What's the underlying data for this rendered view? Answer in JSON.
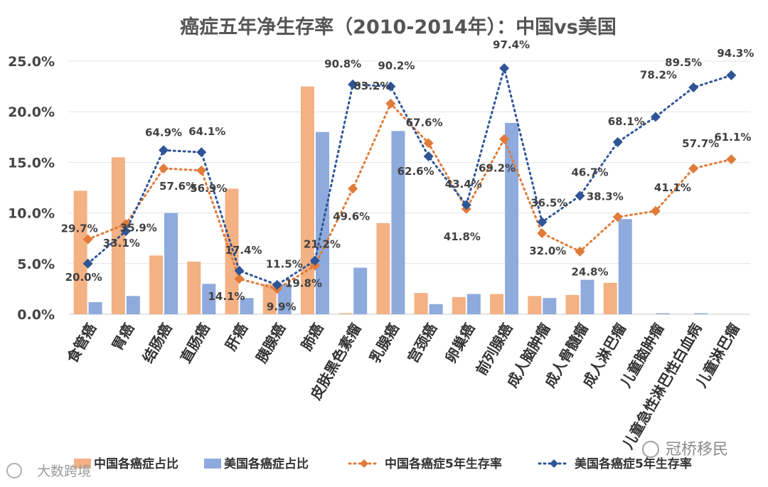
{
  "chart_data": {
    "type": "bar",
    "title": "癌症五年净生存率（2010-2014年）：中国vs美国",
    "categories": [
      "食管癌",
      "胃癌",
      "结肠癌",
      "直肠癌",
      "肝癌",
      "胰腺癌",
      "肺癌",
      "皮肤黑色素瘤",
      "乳腺癌",
      "宫颈癌",
      "卵巢癌",
      "前列腺癌",
      "成人脑肿瘤",
      "成人骨髓瘤",
      "成人淋巴瘤",
      "儿童脑肿瘤",
      "儿童急性淋巴性白血病",
      "儿童淋巴瘤"
    ],
    "ylim": [
      0,
      25
    ],
    "yticks": [
      "0.0%",
      "5.0%",
      "10.0%",
      "15.0%",
      "20.0%",
      "25.0%"
    ],
    "series": [
      {
        "name": "中国各癌症占比",
        "kind": "bar",
        "color": "#F4B183",
        "values": [
          12.2,
          15.5,
          5.8,
          5.2,
          12.4,
          3.0,
          22.5,
          0.1,
          9.0,
          2.1,
          1.7,
          2.0,
          1.8,
          1.9,
          3.1,
          0.0,
          0.0,
          0.0
        ]
      },
      {
        "name": "美国各癌症占比",
        "kind": "bar",
        "color": "#8FAADC",
        "values": [
          1.2,
          1.8,
          10.0,
          3.0,
          1.6,
          3.0,
          18.0,
          4.6,
          18.1,
          1.0,
          2.0,
          18.9,
          1.6,
          3.4,
          9.4,
          0.1,
          0.1,
          0.0
        ]
      },
      {
        "name": "中国各癌症5年生存率",
        "kind": "line",
        "color": "#E07B39",
        "values": [
          7.4,
          8.9,
          14.4,
          14.2,
          3.5,
          2.5,
          4.8,
          12.4,
          20.8,
          16.9,
          10.4,
          17.3,
          8.0,
          6.2,
          9.6,
          10.2,
          14.4,
          15.3
        ],
        "labels": [
          "29.7%",
          "35.9%",
          "57.6%",
          "56.9%",
          "14.1%",
          "9.9%",
          "19.8%",
          "49.6%",
          "83.2%",
          "67.6%",
          "41.8%",
          "69.2%",
          "32.0%",
          "24.8%",
          "38.3%",
          "41.1%",
          "57.7%",
          "61.1%"
        ]
      },
      {
        "name": "美国各癌症5年生存率",
        "kind": "line",
        "color": "#2F5597",
        "values": [
          5.0,
          8.2,
          16.2,
          16.0,
          4.3,
          2.9,
          5.3,
          22.7,
          22.5,
          15.6,
          10.8,
          24.3,
          9.1,
          11.7,
          17.0,
          19.5,
          22.4,
          23.6
        ],
        "labels": [
          "20.0%",
          "33.1%",
          "64.9%",
          "64.1%",
          "17.4%",
          "11.5%",
          "21.2%",
          "90.8%",
          "90.2%",
          "62.6%",
          "43.4%",
          "97.4%",
          "36.5%",
          "46.7%",
          "68.1%",
          "78.2%",
          "89.5%",
          "94.3%"
        ]
      }
    ]
  },
  "watermarks": {
    "left": "大数跨境",
    "right": "冠桥移民"
  }
}
